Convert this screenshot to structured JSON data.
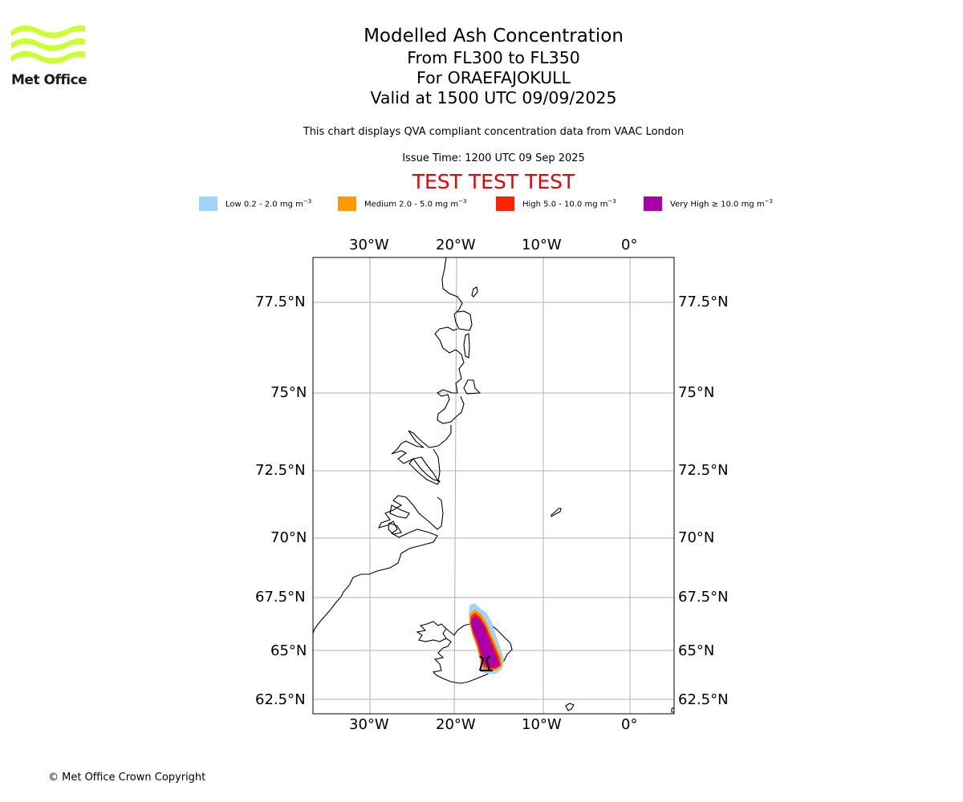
{
  "logo": {
    "text": "Met Office"
  },
  "title": {
    "line1": "Modelled Ash Concentration",
    "line2": "From FL300 to FL350",
    "line3": "For ORAEFAJOKULL",
    "line4": "Valid at 1500 UTC 09/09/2025"
  },
  "subtitle": "This chart displays QVA compliant concentration data from VAAC London",
  "issue_time": "Issue Time: 1200 UTC 09 Sep 2025",
  "test_banner": "TEST TEST TEST",
  "legend": [
    {
      "label": "Low 0.2 - 2.0 mg m",
      "color": "#a0d4fa"
    },
    {
      "label": "Medium 2.0 - 5.0 mg m",
      "color": "#ff9900"
    },
    {
      "label": "High 5.0 - 10.0 mg m",
      "color": "#ff2200"
    },
    {
      "label": "Very High  ≥  10.0 mg m",
      "color": "#aa00aa"
    }
  ],
  "legend_unit_exponent": "−3",
  "colors": {
    "banner": "#e60000",
    "logo": "#ccff33",
    "gridline": "#b0b0b0"
  },
  "map": {
    "lon_ticks": [
      "30°W",
      "20°W",
      "10°W",
      "0°"
    ],
    "lat_ticks": [
      "77.5°N",
      "75°N",
      "72.5°N",
      "70°N",
      "67.5°N",
      "65°N",
      "62.5°N"
    ]
  },
  "copyright": "© Met Office Crown Copyright"
}
